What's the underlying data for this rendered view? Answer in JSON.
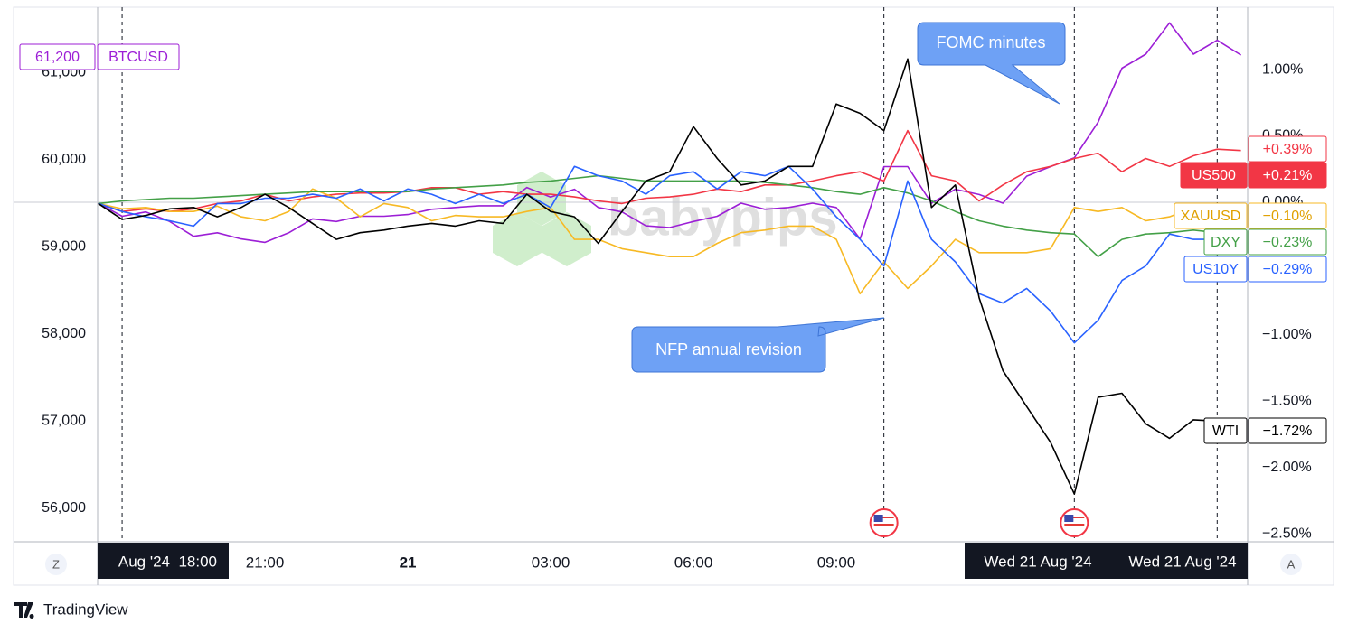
{
  "chart_data": {
    "type": "line",
    "xlim": [
      -8.28,
      17.64
    ],
    "xticks": [
      {
        "value": -3,
        "label": "21:00"
      },
      {
        "value": 0,
        "label": "21"
      },
      {
        "value": 3,
        "label": "03:00"
      },
      {
        "value": 6,
        "label": "06:00"
      },
      {
        "value": 9,
        "label": "09:00"
      }
    ],
    "x_highlights": [
      "Aug '24  18:00",
      "Wed 21 Aug '24",
      "Wed 21 Aug '24"
    ],
    "ylim": [
      55614,
      61749
    ],
    "yticks": [
      {
        "value": 56000,
        "label": "56,000"
      },
      {
        "value": 57000,
        "label": "57,000"
      },
      {
        "value": 58000,
        "label": "58,000"
      },
      {
        "value": 59000,
        "label": "59,000"
      },
      {
        "value": 60000,
        "label": "60,000"
      },
      {
        "value": 61000,
        "label": "61,000"
      }
    ],
    "y2lim": [
      -2.56,
      1.47
    ],
    "y2ticks": [
      {
        "value": -2.5,
        "label": "−2.50%"
      },
      {
        "value": -2,
        "label": "−2.00%"
      },
      {
        "value": -1.5,
        "label": "−1.50%"
      },
      {
        "value": -1,
        "label": "−1.00%"
      },
      {
        "value": -0.5,
        "label": "−0.50%"
      },
      {
        "value": 0,
        "label": "0.00%"
      },
      {
        "value": 0.5,
        "label": "0.50%"
      },
      {
        "value": 1,
        "label": "1.00%"
      }
    ],
    "event_lines": [
      -6,
      10,
      14,
      17
    ],
    "event_flags": [
      10,
      14
    ],
    "x": [
      -6.5,
      -6,
      -5.5,
      -5,
      -4.5,
      -4,
      -3.5,
      -3,
      -2.5,
      -2,
      -1.5,
      -1,
      -0.5,
      0,
      0.5,
      1,
      1.5,
      2,
      2.5,
      3,
      3.5,
      4,
      4.5,
      5,
      5.5,
      6,
      6.5,
      7,
      7.5,
      8,
      8.5,
      9,
      9.5,
      10,
      10.5,
      11,
      11.5,
      12,
      12.5,
      13,
      13.5,
      14,
      14.5,
      15,
      15.5,
      16,
      16.5,
      17,
      17.5
    ],
    "series": [
      {
        "name": "BTCUSD",
        "color": "#9c1fd6",
        "axis": "y",
        "last_label": "61,200",
        "values": [
          59500,
          59350,
          59400,
          59290,
          59120,
          59160,
          59090,
          59050,
          59160,
          59320,
          59290,
          59350,
          59350,
          59370,
          59430,
          59450,
          59470,
          59470,
          59680,
          59570,
          59660,
          59450,
          59400,
          59240,
          59220,
          59290,
          59350,
          59500,
          59430,
          59450,
          59500,
          59450,
          59090,
          59920,
          59920,
          59500,
          59660,
          59600,
          59500,
          59810,
          59920,
          60020,
          60430,
          61050,
          61210,
          61570,
          61210,
          61370,
          61200
        ]
      },
      {
        "name": "US500",
        "color": "#f23645",
        "axis": "y2",
        "last_label": "+0.39%",
        "name_value_label": "+0.21%",
        "values": [
          -0.01,
          -0.07,
          -0.05,
          -0.07,
          -0.05,
          -0.01,
          0.01,
          0.06,
          0.01,
          0.04,
          0.06,
          0.07,
          0.07,
          0.08,
          0.11,
          0.11,
          0.06,
          0.08,
          0.06,
          0.06,
          0.04,
          0.01,
          -0.01,
          0.03,
          0.04,
          0.06,
          0.1,
          0.08,
          0.13,
          0.13,
          0.16,
          0.2,
          0.23,
          0.16,
          0.54,
          0.2,
          0.16,
          0.01,
          0.13,
          0.23,
          0.27,
          0.33,
          0.37,
          0.23,
          0.33,
          0.27,
          0.35,
          0.4,
          0.39
        ]
      },
      {
        "name": "XAUUSD",
        "color": "#f7b924",
        "axis": "y2",
        "last_label": "−0.10%",
        "values": [
          -0.01,
          -0.05,
          -0.04,
          -0.07,
          -0.07,
          -0.03,
          -0.11,
          -0.14,
          -0.07,
          0.1,
          0.03,
          -0.11,
          -0.01,
          -0.04,
          -0.14,
          -0.1,
          -0.11,
          -0.11,
          -0.07,
          -0.04,
          -0.28,
          -0.28,
          -0.35,
          -0.38,
          -0.41,
          -0.41,
          -0.31,
          -0.23,
          -0.21,
          -0.18,
          -0.18,
          -0.28,
          -0.69,
          -0.45,
          -0.65,
          -0.48,
          -0.28,
          -0.38,
          -0.38,
          -0.38,
          -0.35,
          -0.04,
          -0.07,
          -0.04,
          -0.14,
          -0.11,
          -0.04,
          -0.07,
          -0.1
        ]
      },
      {
        "name": "DXY",
        "color": "#43a047",
        "axis": "y2",
        "last_label": "−0.23%",
        "values": [
          -0.01,
          0.01,
          0.02,
          0.03,
          0.03,
          0.04,
          0.05,
          0.06,
          0.07,
          0.08,
          0.08,
          0.08,
          0.08,
          0.08,
          0.1,
          0.11,
          0.12,
          0.13,
          0.15,
          0.16,
          0.18,
          0.2,
          0.18,
          0.16,
          0.16,
          0.16,
          0.16,
          0.16,
          0.15,
          0.13,
          0.11,
          0.08,
          0.06,
          0.11,
          0.07,
          0.01,
          -0.07,
          -0.14,
          -0.18,
          -0.21,
          -0.23,
          -0.24,
          -0.41,
          -0.28,
          -0.24,
          -0.23,
          -0.21,
          -0.23,
          -0.23
        ]
      },
      {
        "name": "US10Y",
        "color": "#2962ff",
        "axis": "y2",
        "last_label": "−0.29%",
        "values": [
          -0.01,
          -0.07,
          -0.11,
          -0.14,
          -0.18,
          -0.01,
          -0.01,
          0.03,
          0.03,
          0.06,
          0.03,
          0.1,
          0.01,
          0.1,
          0.06,
          -0.01,
          0.06,
          -0.01,
          0.06,
          -0.04,
          0.27,
          0.2,
          0.16,
          0.06,
          0.2,
          0.23,
          0.1,
          0.23,
          0.2,
          0.27,
          0.1,
          -0.11,
          -0.28,
          -0.48,
          0.16,
          -0.28,
          -0.45,
          -0.69,
          -0.76,
          -0.65,
          -0.82,
          -1.06,
          -0.89,
          -0.59,
          -0.48,
          -0.24,
          -0.28,
          -0.28,
          -0.29
        ]
      },
      {
        "name": "WTI",
        "color": "#000000",
        "axis": "y2",
        "last_label": "−1.72%",
        "values": [
          -0.01,
          -0.13,
          -0.1,
          -0.05,
          -0.04,
          -0.11,
          -0.04,
          0.06,
          -0.04,
          -0.16,
          -0.28,
          -0.23,
          -0.21,
          -0.18,
          -0.16,
          -0.18,
          -0.14,
          -0.16,
          0.06,
          -0.07,
          -0.11,
          -0.31,
          -0.07,
          0.16,
          0.23,
          0.57,
          0.33,
          0.13,
          0.16,
          0.27,
          0.27,
          0.74,
          0.67,
          0.54,
          1.08,
          -0.04,
          0.13,
          -0.72,
          -1.27,
          -1.54,
          -1.81,
          -2.2,
          -1.47,
          -1.44,
          -1.67,
          -1.78,
          -1.64,
          -1.65,
          -1.72
        ]
      }
    ],
    "annotations": [
      {
        "text": "FOMC minutes"
      },
      {
        "text": "NFP annual revision"
      }
    ],
    "watermark": "babypips",
    "buttons": [
      "Z",
      "A"
    ],
    "brand": "TradingView"
  }
}
